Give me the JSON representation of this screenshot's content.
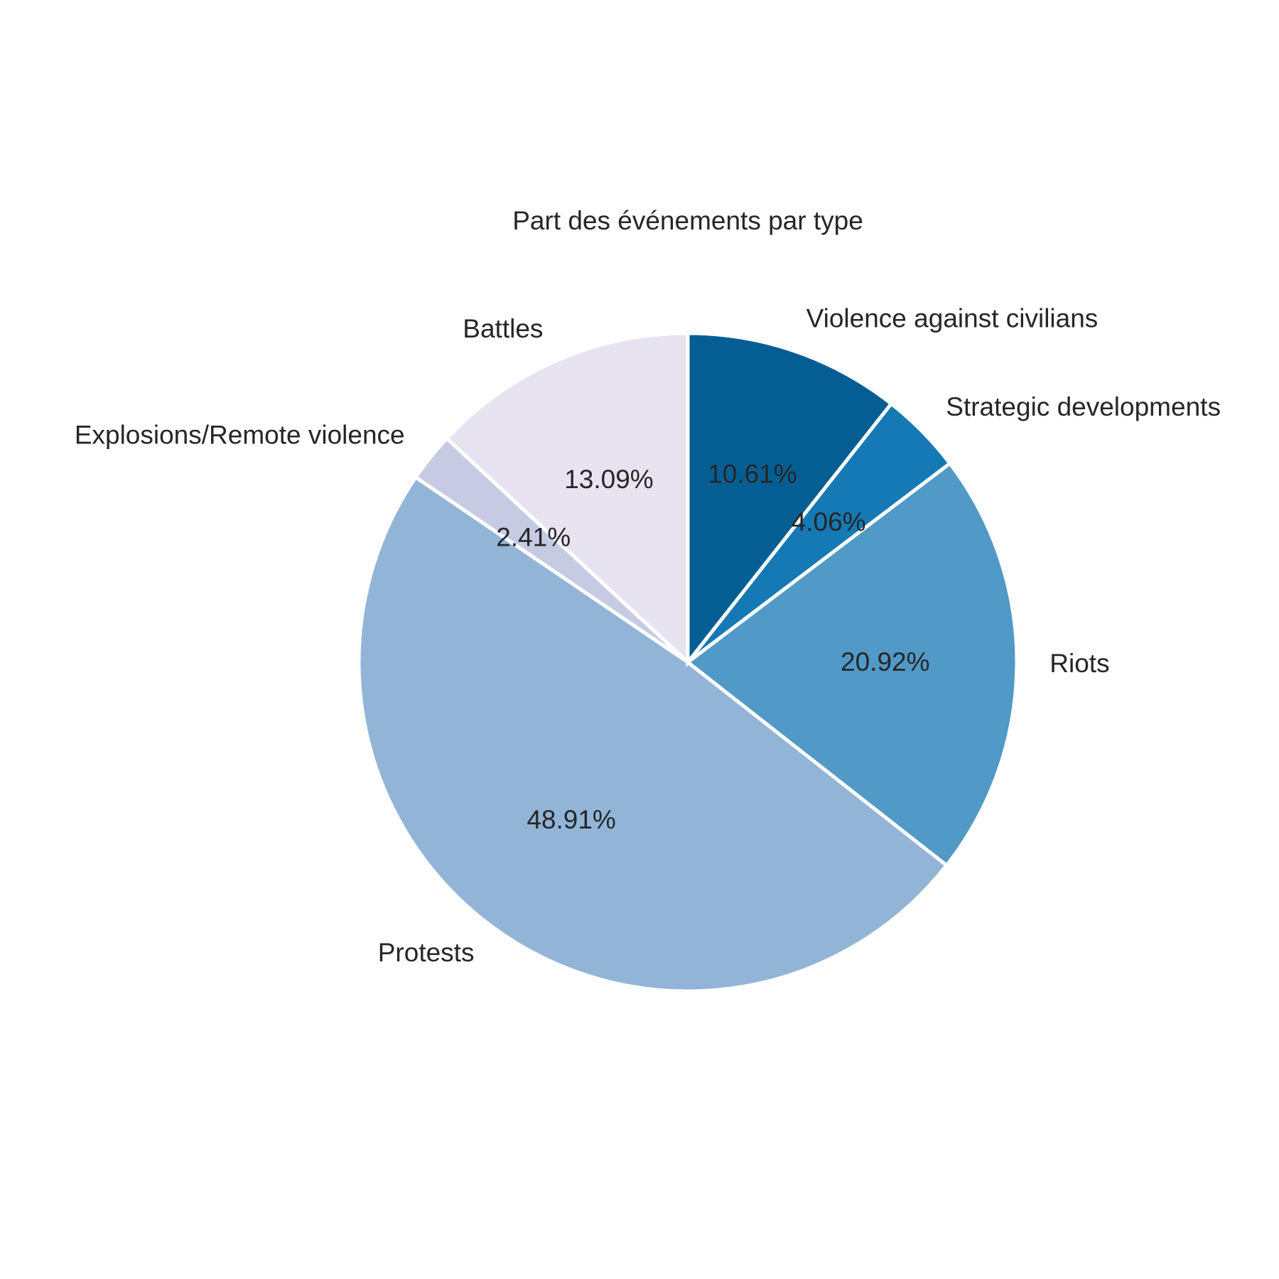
{
  "chart_data": {
    "type": "pie",
    "title": "Part des événements par type",
    "slices": [
      {
        "label": "Battles",
        "value": 13.09,
        "pct_label": "13.09%",
        "color": "#e7e3f0"
      },
      {
        "label": "Explosions/Remote violence",
        "value": 2.41,
        "pct_label": "2.41%",
        "color": "#c6cbe3"
      },
      {
        "label": "Protests",
        "value": 48.91,
        "pct_label": "48.91%",
        "color": "#92b5d7"
      },
      {
        "label": "Riots",
        "value": 20.92,
        "pct_label": "20.92%",
        "color": "#5199c6"
      },
      {
        "label": "Strategic developments",
        "value": 4.06,
        "pct_label": "4.06%",
        "color": "#1479b5"
      },
      {
        "label": "Violence against civilians",
        "value": 10.61,
        "pct_label": "10.61%",
        "color": "#045e93"
      }
    ],
    "start_angle_deg": 90,
    "direction": "counterclockwise",
    "legend": "none"
  }
}
